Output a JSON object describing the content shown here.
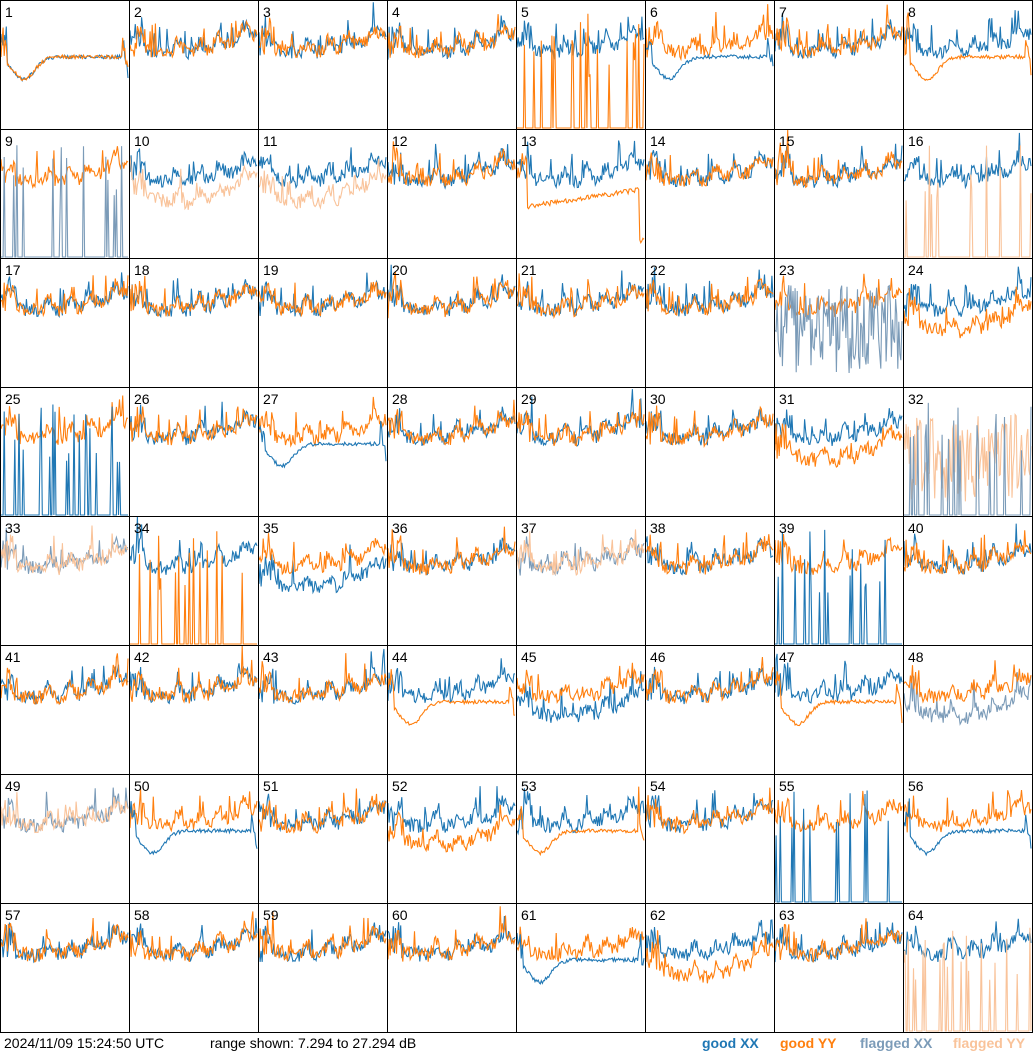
{
  "chart_data": {
    "type": "line",
    "layout": "8x8 small multiples",
    "panels": [
      "1",
      "2",
      "3",
      "4",
      "5",
      "6",
      "7",
      "8",
      "9",
      "10",
      "11",
      "12",
      "13",
      "14",
      "15",
      "16",
      "17",
      "18",
      "19",
      "20",
      "21",
      "22",
      "23",
      "24",
      "25",
      "26",
      "27",
      "28",
      "29",
      "30",
      "31",
      "32",
      "33",
      "34",
      "35",
      "36",
      "37",
      "38",
      "39",
      "40",
      "41",
      "42",
      "43",
      "44",
      "45",
      "46",
      "47",
      "48",
      "49",
      "50",
      "51",
      "52",
      "53",
      "54",
      "55",
      "56",
      "57",
      "58",
      "59",
      "60",
      "61",
      "62",
      "63",
      "64"
    ],
    "ylim": [
      7.294,
      27.294
    ],
    "y_unit": "dB",
    "series": [
      {
        "name": "good XX",
        "color": "#1f77b4"
      },
      {
        "name": "good YY",
        "color": "#ff7f0e"
      },
      {
        "name": "flagged XX",
        "color": "#7b9bb8"
      },
      {
        "name": "flagged YY",
        "color": "#f9c39a"
      }
    ],
    "panel_styles": {
      "1": "dip_both",
      "5": "yy_spikes",
      "6": "dip_xx",
      "8": "dip_yy",
      "9": "xx_flagged_spikes",
      "10": "yy_flagged_low",
      "11": "yy_flagged_low",
      "13": "ramp_yy",
      "16": "yy_flagged_spikes",
      "23": "xx_flagged_noise",
      "24": "low_yy",
      "25": "xx_spike",
      "27": "dip_xx",
      "31": "low_yy",
      "32": "yy_flagged_noise",
      "33": "both_flagged",
      "34": "yy_spikes",
      "35": "low_xx",
      "37": "both_flagged",
      "39": "xx_spikes",
      "44": "dip_yy",
      "45": "low_xx",
      "47": "dip_yy",
      "48": "xx_flagged_low",
      "49": "both_flagged",
      "50": "dip_xx",
      "52": "low_yy",
      "53": "dip_yy",
      "55": "xx_spikes",
      "56": "dip_xx",
      "61": "dip_xx",
      "62": "low_yy",
      "64": "yy_flagged_spikes"
    },
    "x_tick_labels": [],
    "y_tick_labels": []
  },
  "footer": {
    "timestamp": "2024/11/09 15:24:50 UTC",
    "range_text": "range shown: 7.294 to 27.294 dB",
    "legend": {
      "good_xx": "good XX",
      "good_yy": "good YY",
      "flagged_xx": "flagged XX",
      "flagged_yy": "flagged YY"
    }
  }
}
